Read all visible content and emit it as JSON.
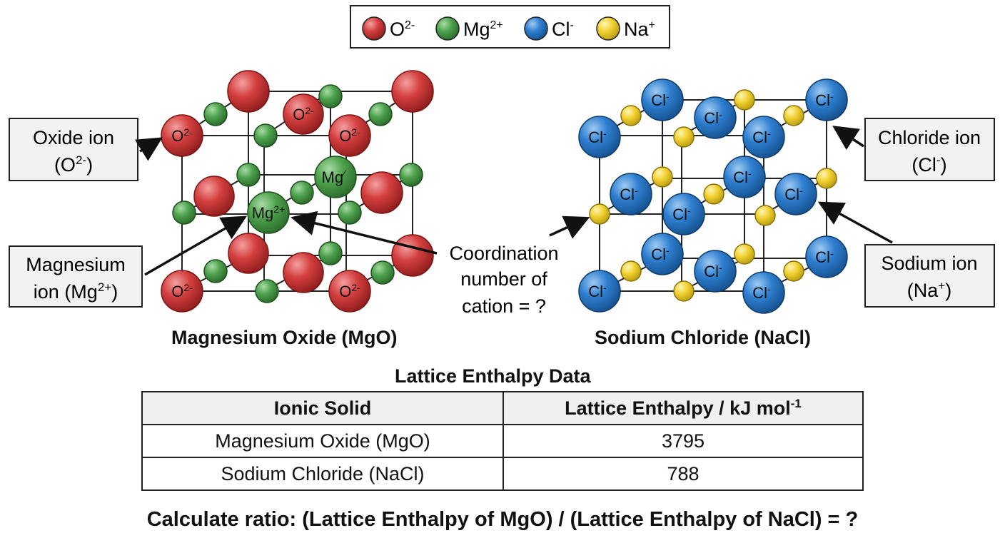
{
  "legend": [
    {
      "label": "O2-",
      "base": "O",
      "sup": "2-",
      "color": "#d43f3f"
    },
    {
      "label": "Mg2+",
      "base": "Mg",
      "sup": "2+",
      "color": "#4ea24e"
    },
    {
      "label": "Cl-",
      "base": "Cl",
      "sup": "-",
      "color": "#2f7fd0"
    },
    {
      "label": "Na+",
      "base": "Na",
      "sup": "+",
      "color": "#f2d232"
    }
  ],
  "callouts": {
    "oxide": {
      "line1": "Oxide ion",
      "base": "(O",
      "sup": "2-",
      "tail": ")"
    },
    "magnesium": {
      "line1": "Magnesium",
      "base": "ion (Mg",
      "sup": "2+",
      "tail": ")"
    },
    "coordination": {
      "lines": [
        "Coordination",
        "number of",
        "cation = ?"
      ]
    },
    "chloride": {
      "line1": "Chloride ion",
      "base": "(Cl",
      "sup": "-",
      "tail": ")"
    },
    "sodium": {
      "line1": "Sodium ion",
      "base": "(Na",
      "sup": "+",
      "tail": ")"
    }
  },
  "ion_labels": {
    "oxide": {
      "base": "O",
      "sup": "2-"
    },
    "magnesium": {
      "base": "Mg",
      "sup": "2+"
    },
    "magnesium_partial": {
      "base": "Mg",
      "sup": "⁄"
    },
    "chloride": {
      "base": "Cl",
      "sup": "-"
    }
  },
  "captions": {
    "mgo": "Magnesium Oxide (MgO)",
    "nacl": "Sodium Chloride (NaCl)"
  },
  "table": {
    "title": "Lattice Enthalpy Data",
    "headers": {
      "solid": "Ionic Solid",
      "enthalpy": "Lattice Enthalpy / kJ mol",
      "enthalpy_sup": "-1"
    },
    "rows": [
      {
        "solid": "Magnesium Oxide (MgO)",
        "value": "3795"
      },
      {
        "solid": "Sodium Chloride (NaCl)",
        "value": "788"
      }
    ]
  },
  "question": "Calculate ratio: (Lattice Enthalpy of MgO)  / (Lattice Enthalpy of NaCl) = ?",
  "colors": {
    "oxide": "#d43f3f",
    "magnesium": "#4ea24e",
    "chloride": "#2f7fd0",
    "sodium": "#f2d232",
    "line": "#222222",
    "callout_bg": "#f2f2f2"
  }
}
